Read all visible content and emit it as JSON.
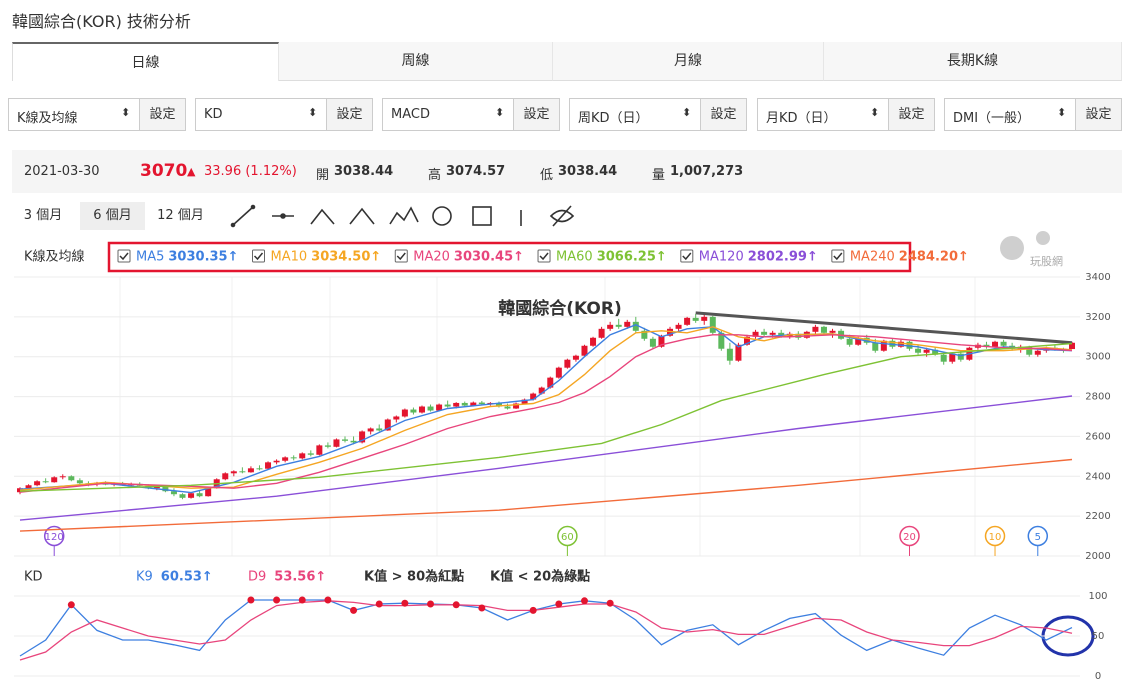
{
  "header": {
    "title": "韓國綜合(KOR) 技術分析"
  },
  "tabs": [
    "日線",
    "周線",
    "月線",
    "長期K線"
  ],
  "selectors": [
    {
      "label": "K線及均線",
      "button": "設定"
    },
    {
      "label": "KD",
      "button": "設定"
    },
    {
      "label": "MACD",
      "button": "設定"
    },
    {
      "label": "周KD（日）",
      "button": "設定"
    },
    {
      "label": "月KD（日）",
      "button": "設定"
    },
    {
      "label": "DMI（一般）",
      "button": "設定"
    }
  ],
  "quote": {
    "date": "2021-03-30",
    "price": 3070,
    "change": "33.96 (1.12%)",
    "open": {
      "label": "開",
      "value": "3038.44"
    },
    "high": {
      "label": "高",
      "value": "3074.57"
    },
    "low": {
      "label": "低",
      "value": "3038.44"
    },
    "volume": {
      "label": "量",
      "value": "1,007,273"
    }
  },
  "ranges": [
    "3 個月",
    "6 個月",
    "12 個月"
  ],
  "watermark": "玩股網",
  "chart_data": [
    {
      "type": "candlestick",
      "title": "韓國綜合(KOR)",
      "legend_title": "K線及均線",
      "ylim": [
        2000,
        3400
      ],
      "yticks": [
        2000,
        2200,
        2400,
        2600,
        2800,
        3000,
        3200,
        3400
      ],
      "xlim": [
        0,
        123
      ],
      "grid": true,
      "up_color": "#e3152f",
      "down_color": "#5cb85c",
      "candles": [
        [
          2320,
          2345,
          2310,
          2340
        ],
        [
          2340,
          2360,
          2335,
          2355
        ],
        [
          2355,
          2380,
          2350,
          2375
        ],
        [
          2375,
          2390,
          2365,
          2370
        ],
        [
          2370,
          2400,
          2368,
          2395
        ],
        [
          2395,
          2410,
          2385,
          2400
        ],
        [
          2400,
          2405,
          2375,
          2380
        ],
        [
          2380,
          2390,
          2360,
          2365
        ],
        [
          2365,
          2375,
          2350,
          2360
        ],
        [
          2360,
          2372,
          2350,
          2368
        ],
        [
          2368,
          2375,
          2355,
          2358
        ],
        [
          2358,
          2370,
          2350,
          2366
        ],
        [
          2366,
          2372,
          2352,
          2355
        ],
        [
          2355,
          2368,
          2348,
          2362
        ],
        [
          2362,
          2370,
          2350,
          2352
        ],
        [
          2352,
          2360,
          2335,
          2340
        ],
        [
          2340,
          2352,
          2330,
          2348
        ],
        [
          2348,
          2355,
          2320,
          2325
        ],
        [
          2325,
          2340,
          2300,
          2310
        ],
        [
          2310,
          2315,
          2285,
          2292
        ],
        [
          2292,
          2320,
          2288,
          2315
        ],
        [
          2315,
          2330,
          2295,
          2300
        ],
        [
          2300,
          2345,
          2298,
          2340
        ],
        [
          2340,
          2390,
          2338,
          2385
        ],
        [
          2385,
          2420,
          2380,
          2415
        ],
        [
          2415,
          2430,
          2400,
          2425
        ],
        [
          2425,
          2445,
          2415,
          2420
        ],
        [
          2420,
          2450,
          2418,
          2440
        ],
        [
          2440,
          2455,
          2430,
          2438
        ],
        [
          2438,
          2475,
          2435,
          2470
        ],
        [
          2470,
          2485,
          2460,
          2478
        ],
        [
          2478,
          2500,
          2470,
          2495
        ],
        [
          2495,
          2505,
          2480,
          2490
        ],
        [
          2490,
          2520,
          2485,
          2515
        ],
        [
          2515,
          2530,
          2500,
          2508
        ],
        [
          2508,
          2560,
          2505,
          2555
        ],
        [
          2555,
          2570,
          2540,
          2548
        ],
        [
          2548,
          2590,
          2545,
          2585
        ],
        [
          2585,
          2600,
          2570,
          2578
        ],
        [
          2578,
          2600,
          2560,
          2570
        ],
        [
          2570,
          2630,
          2565,
          2625
        ],
        [
          2625,
          2645,
          2610,
          2640
        ],
        [
          2640,
          2660,
          2625,
          2630
        ],
        [
          2630,
          2690,
          2628,
          2685
        ],
        [
          2685,
          2705,
          2670,
          2700
        ],
        [
          2700,
          2740,
          2695,
          2735
        ],
        [
          2735,
          2745,
          2710,
          2720
        ],
        [
          2720,
          2755,
          2715,
          2750
        ],
        [
          2750,
          2760,
          2725,
          2730
        ],
        [
          2730,
          2765,
          2725,
          2760
        ],
        [
          2760,
          2780,
          2745,
          2750
        ],
        [
          2750,
          2772,
          2740,
          2768
        ],
        [
          2768,
          2775,
          2750,
          2755
        ],
        [
          2755,
          2775,
          2750,
          2770
        ],
        [
          2770,
          2778,
          2758,
          2762
        ],
        [
          2762,
          2772,
          2755,
          2768
        ],
        [
          2768,
          2775,
          2745,
          2750
        ],
        [
          2750,
          2765,
          2735,
          2740
        ],
        [
          2740,
          2770,
          2738,
          2765
        ],
        [
          2765,
          2790,
          2760,
          2785
        ],
        [
          2785,
          2820,
          2780,
          2815
        ],
        [
          2815,
          2850,
          2810,
          2845
        ],
        [
          2845,
          2900,
          2840,
          2895
        ],
        [
          2895,
          2950,
          2890,
          2945
        ],
        [
          2945,
          2990,
          2940,
          2985
        ],
        [
          2985,
          3010,
          2975,
          3005
        ],
        [
          3005,
          3060,
          3000,
          3055
        ],
        [
          3055,
          3100,
          3050,
          3095
        ],
        [
          3095,
          3150,
          3090,
          3140
        ],
        [
          3140,
          3175,
          3130,
          3160
        ],
        [
          3160,
          3190,
          3140,
          3150
        ],
        [
          3150,
          3185,
          3140,
          3175
        ],
        [
          3175,
          3200,
          3120,
          3130
        ],
        [
          3130,
          3145,
          3080,
          3090
        ],
        [
          3090,
          3100,
          3040,
          3050
        ],
        [
          3050,
          3110,
          3045,
          3105
        ],
        [
          3105,
          3150,
          3100,
          3140
        ],
        [
          3140,
          3170,
          3125,
          3160
        ],
        [
          3160,
          3200,
          3155,
          3195
        ],
        [
          3195,
          3215,
          3170,
          3180
        ],
        [
          3180,
          3210,
          3160,
          3200
        ],
        [
          3200,
          3205,
          3110,
          3120
        ],
        [
          3120,
          3130,
          3030,
          3040
        ],
        [
          3040,
          3070,
          2960,
          2980
        ],
        [
          2980,
          3070,
          2975,
          3060
        ],
        [
          3060,
          3110,
          3055,
          3100
        ],
        [
          3100,
          3135,
          3090,
          3125
        ],
        [
          3125,
          3140,
          3100,
          3110
        ],
        [
          3110,
          3130,
          3095,
          3120
        ],
        [
          3120,
          3135,
          3095,
          3100
        ],
        [
          3100,
          3125,
          3090,
          3115
        ],
        [
          3115,
          3128,
          3085,
          3095
        ],
        [
          3095,
          3130,
          3090,
          3125
        ],
        [
          3125,
          3160,
          3115,
          3150
        ],
        [
          3150,
          3155,
          3110,
          3120
        ],
        [
          3120,
          3140,
          3095,
          3130
        ],
        [
          3130,
          3140,
          3085,
          3090
        ],
        [
          3090,
          3110,
          3050,
          3060
        ],
        [
          3060,
          3100,
          3055,
          3095
        ],
        [
          3095,
          3110,
          3060,
          3070
        ],
        [
          3070,
          3090,
          3020,
          3030
        ],
        [
          3030,
          3085,
          3025,
          3080
        ],
        [
          3080,
          3090,
          3040,
          3050
        ],
        [
          3050,
          3085,
          3045,
          3075
        ],
        [
          3075,
          3080,
          3030,
          3040
        ],
        [
          3040,
          3060,
          3010,
          3020
        ],
        [
          3020,
          3045,
          3000,
          3035
        ],
        [
          3035,
          3050,
          3005,
          3010
        ],
        [
          3010,
          3025,
          2960,
          2975
        ],
        [
          2975,
          3020,
          2965,
          3015
        ],
        [
          3015,
          3030,
          2975,
          2985
        ],
        [
          2985,
          3050,
          2980,
          3045
        ],
        [
          3045,
          3070,
          3035,
          3060
        ],
        [
          3060,
          3075,
          3040,
          3050
        ],
        [
          3050,
          3080,
          3045,
          3075
        ],
        [
          3075,
          3085,
          3050,
          3055
        ],
        [
          3055,
          3070,
          3030,
          3040
        ],
        [
          3040,
          3060,
          3020,
          3050
        ],
        [
          3050,
          3055,
          3000,
          3010
        ],
        [
          3010,
          3035,
          3000,
          3030
        ],
        [
          3030,
          3050,
          3020,
          3045
        ],
        [
          3045,
          3060,
          3030,
          3040
        ],
        [
          3040,
          3045,
          3020,
          3036.04
        ],
        [
          3038.44,
          3074.57,
          3038.44,
          3070
        ]
      ],
      "series": [
        {
          "name": "MA5",
          "period": 5,
          "color": "#3d7fe0",
          "value_label": "3030.35↑",
          "x": [
            0,
            10,
            20,
            25,
            30,
            35,
            40,
            45,
            50,
            55,
            60,
            63,
            66,
            69,
            72,
            75,
            78,
            81,
            84,
            87,
            90,
            95,
            100,
            105,
            110,
            115,
            120,
            123
          ],
          "values": [
            2335,
            2365,
            2318,
            2370,
            2450,
            2500,
            2580,
            2680,
            2740,
            2762,
            2785,
            2880,
            3000,
            3110,
            3160,
            3100,
            3140,
            3150,
            3050,
            3100,
            3110,
            3115,
            3070,
            3050,
            3005,
            3050,
            3035,
            3030.35
          ]
        },
        {
          "name": "MA10",
          "period": 10,
          "color": "#f5a623",
          "value_label": "3034.50↑",
          "x": [
            0,
            10,
            20,
            25,
            30,
            35,
            40,
            45,
            50,
            55,
            60,
            63,
            66,
            69,
            72,
            75,
            78,
            81,
            84,
            87,
            90,
            95,
            100,
            105,
            110,
            115,
            120,
            123
          ],
          "values": [
            2330,
            2370,
            2340,
            2345,
            2410,
            2470,
            2540,
            2630,
            2710,
            2750,
            2765,
            2810,
            2910,
            3030,
            3120,
            3130,
            3120,
            3150,
            3100,
            3080,
            3110,
            3115,
            3080,
            3060,
            3030,
            3030,
            3045,
            3034.5
          ]
        },
        {
          "name": "MA20",
          "period": 20,
          "color": "#e8457c",
          "value_label": "3030.45↑",
          "x": [
            0,
            10,
            20,
            25,
            30,
            35,
            40,
            45,
            50,
            55,
            60,
            63,
            66,
            69,
            72,
            75,
            78,
            81,
            84,
            87,
            90,
            95,
            100,
            105,
            110,
            115,
            120,
            123
          ],
          "values": [
            2320,
            2365,
            2350,
            2340,
            2365,
            2420,
            2490,
            2560,
            2640,
            2700,
            2740,
            2770,
            2820,
            2900,
            3000,
            3060,
            3090,
            3110,
            3110,
            3100,
            3100,
            3110,
            3100,
            3080,
            3060,
            3045,
            3040,
            3030.45
          ]
        },
        {
          "name": "MA60",
          "period": 60,
          "color": "#7ec234",
          "value_label": "3066.25↑",
          "x": [
            0,
            20,
            35,
            56,
            68,
            75,
            82,
            94,
            103,
            123
          ],
          "values": [
            2325,
            2355,
            2395,
            2495,
            2565,
            2660,
            2780,
            2910,
            3000,
            3066.25
          ]
        },
        {
          "name": "MA120",
          "period": 120,
          "color": "#8a4fd8",
          "value_label": "2802.99↑",
          "x": [
            0,
            30,
            56,
            91,
            123
          ],
          "values": [
            2180,
            2300,
            2440,
            2640,
            2802.99
          ]
        },
        {
          "name": "MA240",
          "period": 240,
          "color": "#f26b3a",
          "value_label": "2484.20↑",
          "x": [
            0,
            56,
            91,
            123
          ],
          "values": [
            2125,
            2230,
            2355,
            2484.2
          ]
        }
      ],
      "trendline": {
        "color": "#555555",
        "x": [
          79,
          123
        ],
        "values": [
          3220,
          3070
        ]
      }
    },
    {
      "type": "line",
      "title": "KD",
      "annotations": [
        "K值 > 80為紅點",
        "K值 < 20為綠點"
      ],
      "ylim": [
        0,
        100
      ],
      "yticks": [
        0,
        50,
        100
      ],
      "xlim": [
        0,
        123
      ],
      "grid": true,
      "overbought": 80,
      "oversold": 20,
      "overbought_color": "#e3152f",
      "oversold_color": "#5cb85c",
      "x": [
        0,
        3,
        6,
        9,
        12,
        15,
        18,
        21,
        24,
        27,
        30,
        33,
        36,
        39,
        42,
        45,
        48,
        51,
        54,
        57,
        60,
        63,
        66,
        69,
        72,
        75,
        78,
        81,
        84,
        87,
        90,
        93,
        96,
        99,
        102,
        105,
        108,
        111,
        114,
        117,
        120,
        123
      ],
      "series": [
        {
          "name": "K9",
          "color": "#3d7fe0",
          "value_label": "60.53↑",
          "values": [
            25,
            45,
            89,
            57,
            45,
            45,
            39,
            32,
            70,
            95,
            95,
            95,
            95,
            82,
            90,
            91,
            90,
            89,
            85,
            70,
            82,
            90,
            94,
            91,
            70,
            39,
            57,
            64,
            39,
            57,
            72,
            78,
            51,
            32,
            45,
            35,
            26,
            60,
            76,
            64,
            45,
            60.53
          ]
        },
        {
          "name": "D9",
          "color": "#e8457c",
          "value_label": "53.56↑",
          "values": [
            20,
            30,
            55,
            70,
            60,
            50,
            45,
            40,
            45,
            70,
            88,
            92,
            94,
            92,
            88,
            88,
            89,
            89,
            88,
            82,
            82,
            86,
            90,
            90,
            80,
            60,
            55,
            58,
            52,
            52,
            62,
            72,
            70,
            55,
            45,
            42,
            38,
            38,
            48,
            62,
            60,
            53.56
          ]
        }
      ]
    }
  ]
}
